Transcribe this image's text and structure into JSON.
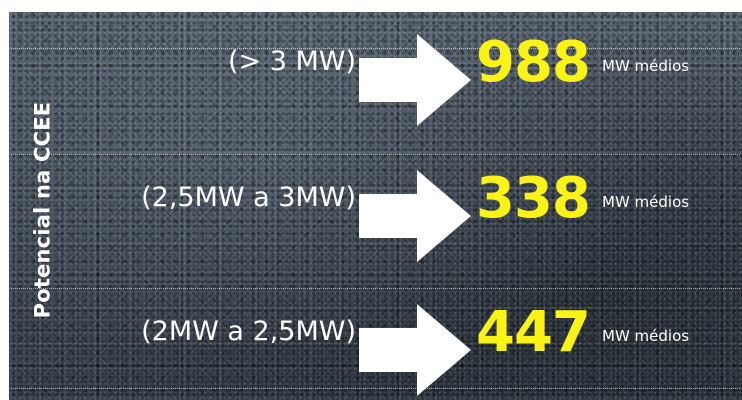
{
  "side_label": "Potencial na CCEE",
  "rows": [
    {
      "range": "(> 3 MW)",
      "value": "988",
      "unit": "MW médios"
    },
    {
      "range": "(2,5MW a 3MW)",
      "value": "338",
      "unit": "MW médios"
    },
    {
      "range": "(2MW a 2,5MW)",
      "value": "447",
      "unit": "MW médios"
    }
  ],
  "colors": {
    "value": "#fbf316",
    "text": "#ffffff",
    "arrow": "#ffffff"
  },
  "icons": {
    "arrow": "right-arrow-icon"
  }
}
